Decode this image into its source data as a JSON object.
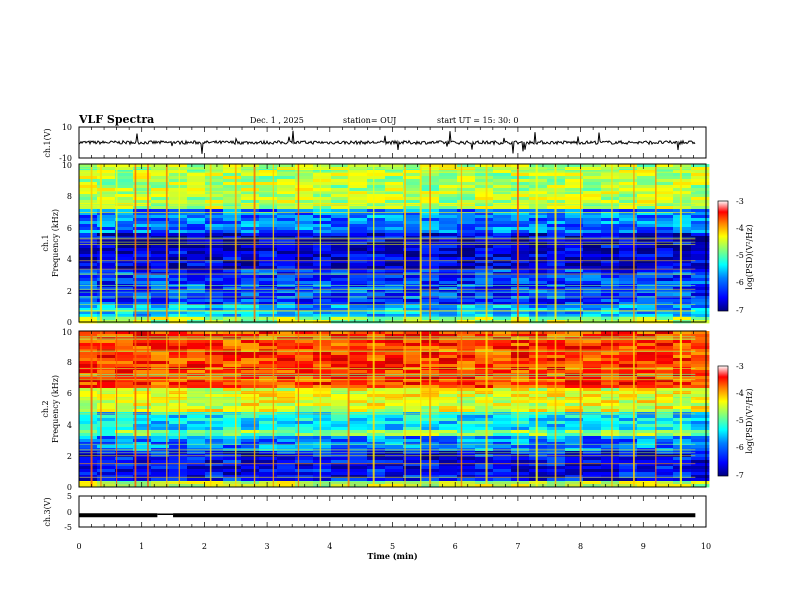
{
  "header": {
    "title": "VLF Spectra",
    "date": "Dec. 1 , 2025",
    "station": "station= OUJ",
    "start": "start UT = 15: 30: 0"
  },
  "chart_data": [
    {
      "type": "line",
      "panel": "ch1-waveform",
      "ylabel": "ch.1(V)",
      "ylim": [
        -10,
        10
      ],
      "yticks": [
        "10",
        "-10"
      ],
      "xlim": [
        0,
        10
      ],
      "baseline": 0,
      "color": "#000000"
    },
    {
      "type": "heatmap",
      "panel": "ch1-spectrogram",
      "ylabel_line1": "ch.1",
      "ylabel_line2": "Frequency (kHz)",
      "ylim": [
        0,
        10
      ],
      "yticks": [
        "0",
        "2",
        "4",
        "6",
        "8",
        "10"
      ],
      "xlim": [
        0,
        10
      ],
      "data_end_min": 9.83,
      "colorbar": {
        "ticks": [
          "-3",
          "-4",
          "-5",
          "-6",
          "-7"
        ],
        "label": "log(PSD)(V²/Hz)"
      },
      "bands_kHz": [
        {
          "from": 0,
          "to": 0.5,
          "level": 0.55
        },
        {
          "from": 0.5,
          "to": 1.2,
          "level": 0.3
        },
        {
          "from": 1.2,
          "to": 3.5,
          "level": 0.18
        },
        {
          "from": 3.5,
          "to": 5.8,
          "level": 0.08
        },
        {
          "from": 5.8,
          "to": 7.2,
          "level": 0.25
        },
        {
          "from": 7.2,
          "to": 10,
          "level": 0.55
        }
      ],
      "sferics_min": [
        0.2,
        0.35,
        0.6,
        0.9,
        1.1,
        1.4,
        1.6,
        2.1,
        2.5,
        2.8,
        3.1,
        3.5,
        3.85,
        4.3,
        4.7,
        5.2,
        5.45,
        5.6,
        6.1,
        6.5,
        7.0,
        7.3,
        7.6,
        8.0,
        8.5,
        8.85,
        9.2,
        9.6
      ]
    },
    {
      "type": "heatmap",
      "panel": "ch2-spectrogram",
      "ylabel_line1": "ch.2",
      "ylabel_line2": "Frequency (kHz)",
      "ylim": [
        0,
        10
      ],
      "yticks": [
        "0",
        "2",
        "4",
        "6",
        "8",
        "10"
      ],
      "xlim": [
        0,
        10
      ],
      "data_end_min": 9.83,
      "colorbar": {
        "ticks": [
          "-3",
          "-4",
          "-5",
          "-6",
          "-7"
        ],
        "label": "log(PSD)(V²/Hz)"
      },
      "bands_kHz": [
        {
          "from": 0,
          "to": 0.5,
          "level": 0.55
        },
        {
          "from": 0.5,
          "to": 2.5,
          "level": 0.12
        },
        {
          "from": 2.5,
          "to": 3.3,
          "level": 0.25
        },
        {
          "from": 3.3,
          "to": 3.7,
          "level": 0.5
        },
        {
          "from": 3.7,
          "to": 5.0,
          "level": 0.35
        },
        {
          "from": 5.0,
          "to": 6.5,
          "level": 0.6
        },
        {
          "from": 6.5,
          "to": 10,
          "level": 0.82
        }
      ],
      "sferics_min": [
        0.2,
        0.35,
        0.6,
        0.9,
        1.1,
        1.4,
        1.6,
        2.1,
        2.5,
        2.8,
        3.1,
        3.5,
        3.85,
        4.3,
        4.7,
        5.2,
        5.45,
        5.6,
        6.1,
        6.5,
        7.0,
        7.3,
        7.6,
        8.0,
        8.5,
        8.85,
        9.2,
        9.6
      ]
    },
    {
      "type": "line",
      "panel": "ch3-waveform",
      "ylabel": "ch.3(V)",
      "ylim": [
        -5,
        5
      ],
      "yticks": [
        "5",
        "0",
        "-5"
      ],
      "xlim": [
        0,
        10
      ],
      "xlabel": "Time (min)",
      "xticks": [
        "0",
        "1",
        "2",
        "3",
        "4",
        "5",
        "6",
        "7",
        "8",
        "9",
        "10"
      ],
      "level_V": -1.2,
      "gap_min": [
        1.25,
        1.5
      ],
      "color": "#000000"
    }
  ],
  "colors": {
    "colormap": [
      "#00007f",
      "#0000ff",
      "#007fff",
      "#00ffff",
      "#7fff7f",
      "#ffff00",
      "#ff7f00",
      "#ff0000",
      "#7f0000"
    ]
  }
}
